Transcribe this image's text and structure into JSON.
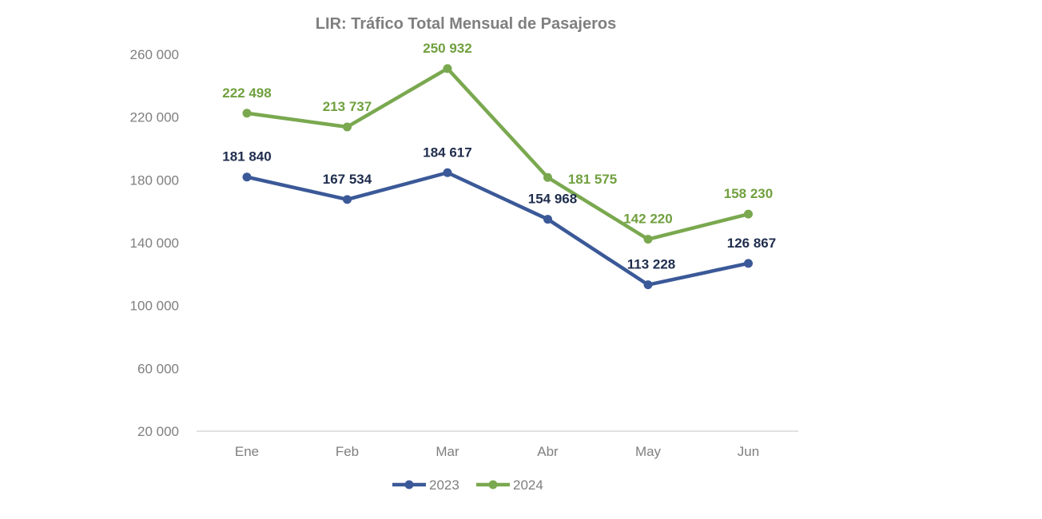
{
  "chart_data": {
    "type": "line",
    "title": "LIR: Tráfico Total Mensual de Pasajeros",
    "xlabel": "",
    "ylabel": "",
    "categories": [
      "Ene",
      "Feb",
      "Mar",
      "Abr",
      "May",
      "Jun"
    ],
    "ylim": [
      20000,
      260000
    ],
    "yticks": [
      20000,
      60000,
      100000,
      140000,
      180000,
      220000,
      260000
    ],
    "ytick_labels": [
      "20 000",
      "60 000",
      "100 000",
      "140 000",
      "180 000",
      "220 000",
      "260 000"
    ],
    "grid": false,
    "legend_position": "bottom",
    "series": [
      {
        "name": "2023",
        "color": "#3b5998",
        "label_color": "#1f2d4d",
        "values": [
          181840,
          167534,
          184617,
          154968,
          113228,
          126867
        ],
        "labels": [
          "181 840",
          "167 534",
          "184 617",
          "154 968",
          "113 228",
          "126 867"
        ]
      },
      {
        "name": "2024",
        "color": "#7aa84f",
        "label_color": "#70a03f",
        "values": [
          222498,
          213737,
          250932,
          181575,
          142220,
          158230
        ],
        "labels": [
          "222 498",
          "213 737",
          "250 932",
          "181 575",
          "142 220",
          "158 230"
        ]
      }
    ]
  }
}
